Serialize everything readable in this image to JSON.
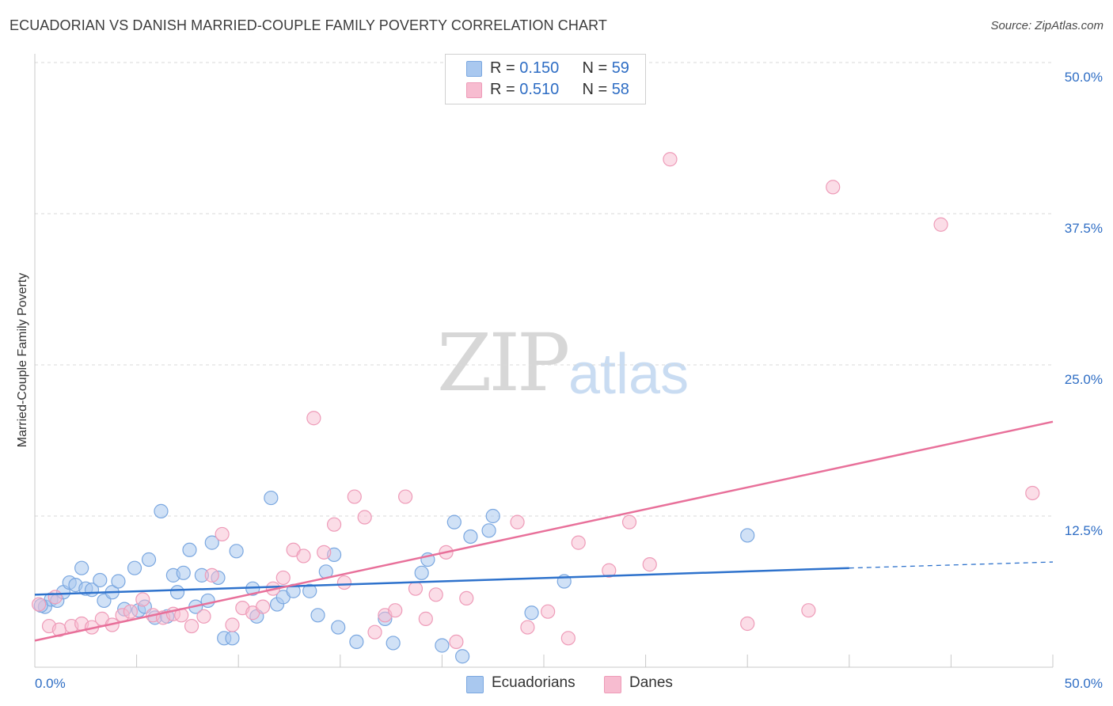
{
  "header": {
    "title": "ECUADORIAN VS DANISH MARRIED-COUPLE FAMILY POVERTY CORRELATION CHART",
    "source": "Source: ZipAtlas.com"
  },
  "watermark": {
    "zip": "ZIP",
    "atlas": "atlas"
  },
  "legend_top": [
    {
      "r_label": "R = ",
      "r_value": "0.150",
      "n_label": "N = ",
      "n_value": "59"
    },
    {
      "r_label": "R = ",
      "r_value": "0.510",
      "n_label": "N = ",
      "n_value": "58"
    }
  ],
  "legend_bottom": [
    {
      "label": "Ecuadorians"
    },
    {
      "label": "Danes"
    }
  ],
  "colors": {
    "blue_fill": "#a9c8ef",
    "blue_stroke": "#7aa7e0",
    "blue_line": "#2e72cc",
    "pink_fill": "#f7bcd0",
    "pink_stroke": "#ee9bb8",
    "pink_line": "#e8709a",
    "axis_text": "#2e6dc4",
    "grid": "#d8d8d8"
  },
  "chart_data": {
    "type": "scatter",
    "title": "ECUADORIAN VS DANISH MARRIED-COUPLE FAMILY POVERTY CORRELATION CHART",
    "xlabel": "",
    "ylabel": "Married-Couple Family Poverty",
    "xlim": [
      0,
      50
    ],
    "ylim": [
      0,
      50
    ],
    "x_tick_labels": [
      "0.0%",
      "50.0%"
    ],
    "y_ticks": [
      12.5,
      25,
      37.5,
      50
    ],
    "y_tick_labels": [
      "12.5%",
      "25.0%",
      "37.5%",
      "50.0%"
    ],
    "grid": true,
    "legend_position": "top-center",
    "series": [
      {
        "name": "Ecuadorians",
        "r": 0.15,
        "n": 59,
        "trend": {
          "x0": 0,
          "y0": 6.0,
          "x1": 40,
          "y1": 8.2,
          "dashed_to_x": 50,
          "dashed_to_y": 8.7
        },
        "points": [
          [
            0.5,
            5.0
          ],
          [
            0.8,
            5.6
          ],
          [
            1.1,
            5.5
          ],
          [
            1.4,
            6.2
          ],
          [
            1.7,
            7.0
          ],
          [
            2.0,
            6.8
          ],
          [
            2.3,
            8.2
          ],
          [
            2.5,
            6.5
          ],
          [
            2.8,
            6.4
          ],
          [
            3.2,
            7.2
          ],
          [
            3.4,
            5.5
          ],
          [
            3.8,
            6.2
          ],
          [
            4.1,
            7.1
          ],
          [
            4.4,
            4.8
          ],
          [
            4.9,
            8.2
          ],
          [
            5.1,
            4.7
          ],
          [
            5.4,
            5.0
          ],
          [
            5.6,
            8.9
          ],
          [
            5.9,
            4.1
          ],
          [
            6.2,
            12.9
          ],
          [
            6.5,
            4.2
          ],
          [
            6.8,
            7.6
          ],
          [
            7.0,
            6.2
          ],
          [
            7.3,
            7.8
          ],
          [
            7.6,
            9.7
          ],
          [
            7.9,
            5.0
          ],
          [
            8.2,
            7.6
          ],
          [
            8.5,
            5.5
          ],
          [
            8.7,
            10.3
          ],
          [
            9.0,
            7.4
          ],
          [
            9.3,
            2.4
          ],
          [
            9.7,
            2.4
          ],
          [
            9.9,
            9.6
          ],
          [
            10.7,
            6.5
          ],
          [
            10.9,
            4.2
          ],
          [
            11.6,
            14.0
          ],
          [
            11.9,
            5.2
          ],
          [
            12.2,
            5.8
          ],
          [
            12.7,
            6.3
          ],
          [
            13.5,
            6.3
          ],
          [
            13.9,
            4.3
          ],
          [
            14.3,
            7.9
          ],
          [
            14.7,
            9.3
          ],
          [
            14.9,
            3.3
          ],
          [
            15.8,
            2.1
          ],
          [
            17.2,
            4.0
          ],
          [
            17.6,
            2.0
          ],
          [
            19.0,
            7.8
          ],
          [
            19.3,
            8.9
          ],
          [
            20.0,
            1.8
          ],
          [
            20.6,
            12.0
          ],
          [
            21.0,
            0.9
          ],
          [
            21.4,
            10.8
          ],
          [
            22.3,
            11.3
          ],
          [
            22.5,
            12.5
          ],
          [
            24.4,
            4.5
          ],
          [
            26.0,
            7.1
          ],
          [
            35.0,
            10.9
          ],
          [
            0.3,
            5.1
          ]
        ]
      },
      {
        "name": "Danes",
        "r": 0.51,
        "n": 58,
        "trend": {
          "x0": 0,
          "y0": 2.2,
          "x1": 50,
          "y1": 20.3
        },
        "points": [
          [
            0.2,
            5.2
          ],
          [
            0.7,
            3.4
          ],
          [
            1.2,
            3.1
          ],
          [
            1.8,
            3.4
          ],
          [
            2.3,
            3.6
          ],
          [
            2.8,
            3.3
          ],
          [
            3.3,
            4.0
          ],
          [
            3.8,
            3.5
          ],
          [
            4.3,
            4.3
          ],
          [
            4.7,
            4.6
          ],
          [
            5.3,
            5.6
          ],
          [
            5.8,
            4.3
          ],
          [
            6.3,
            4.1
          ],
          [
            6.8,
            4.4
          ],
          [
            7.2,
            4.3
          ],
          [
            7.7,
            3.4
          ],
          [
            8.3,
            4.2
          ],
          [
            8.7,
            7.6
          ],
          [
            9.2,
            11.0
          ],
          [
            9.7,
            3.5
          ],
          [
            10.2,
            4.9
          ],
          [
            10.7,
            4.5
          ],
          [
            11.2,
            5.0
          ],
          [
            11.7,
            6.5
          ],
          [
            12.2,
            7.4
          ],
          [
            12.7,
            9.7
          ],
          [
            13.2,
            9.2
          ],
          [
            13.7,
            20.6
          ],
          [
            14.2,
            9.5
          ],
          [
            14.7,
            11.8
          ],
          [
            15.2,
            7.0
          ],
          [
            15.7,
            14.1
          ],
          [
            16.2,
            12.4
          ],
          [
            16.7,
            2.9
          ],
          [
            17.2,
            4.3
          ],
          [
            17.7,
            4.7
          ],
          [
            18.2,
            14.1
          ],
          [
            18.7,
            6.5
          ],
          [
            19.2,
            4.0
          ],
          [
            19.7,
            6.0
          ],
          [
            20.2,
            9.5
          ],
          [
            20.7,
            2.1
          ],
          [
            21.2,
            5.7
          ],
          [
            23.7,
            12.0
          ],
          [
            24.2,
            3.3
          ],
          [
            25.2,
            4.6
          ],
          [
            26.2,
            2.4
          ],
          [
            26.7,
            10.3
          ],
          [
            28.2,
            8.0
          ],
          [
            29.2,
            12.0
          ],
          [
            30.2,
            8.5
          ],
          [
            31.2,
            42.0
          ],
          [
            35.0,
            3.6
          ],
          [
            38.0,
            4.7
          ],
          [
            39.2,
            39.7
          ],
          [
            44.5,
            36.6
          ],
          [
            49.0,
            14.4
          ],
          [
            1.0,
            5.8
          ]
        ]
      }
    ]
  }
}
